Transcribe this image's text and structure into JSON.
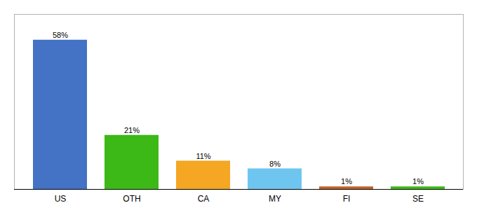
{
  "chart_data": {
    "type": "bar",
    "categories": [
      "US",
      "OTH",
      "CA",
      "MY",
      "FI",
      "SE"
    ],
    "values": [
      58,
      21,
      11,
      8,
      1,
      1
    ],
    "value_labels": [
      "58%",
      "21%",
      "11%",
      "8%",
      "1%",
      "1%"
    ],
    "colors": [
      "#4472c4",
      "#3cb916",
      "#f5a623",
      "#6ec6f0",
      "#c0622a",
      "#3cb916"
    ],
    "ylim": [
      0,
      68
    ],
    "data_labels": true,
    "tick_labels": "x",
    "grid": false
  }
}
